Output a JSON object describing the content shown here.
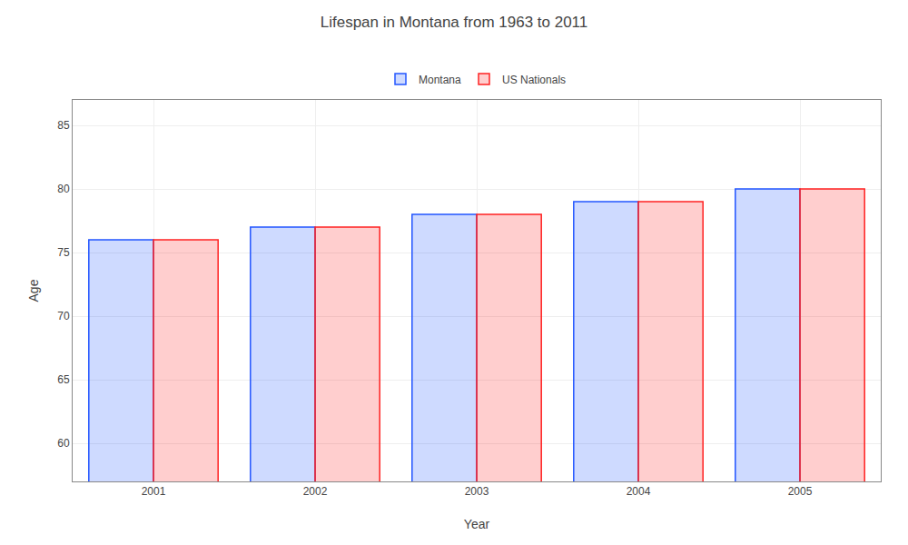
{
  "chart_data": {
    "type": "bar",
    "title": "Lifespan in Montana from 1963 to 2011",
    "x_label": "Year",
    "y_label": "Age",
    "categories": [
      "2001",
      "2002",
      "2003",
      "2004",
      "2005"
    ],
    "series": [
      {
        "name": "Montana",
        "color": "#2255ff",
        "values": [
          76,
          77,
          78,
          79,
          80
        ]
      },
      {
        "name": "US Nationals",
        "color": "#ff2222",
        "values": [
          76,
          77,
          78,
          79,
          80
        ]
      }
    ],
    "ylim": [
      57,
      87
    ],
    "yticks": [
      60,
      65,
      70,
      75,
      80,
      85
    ],
    "grid": true,
    "legend": "top"
  }
}
